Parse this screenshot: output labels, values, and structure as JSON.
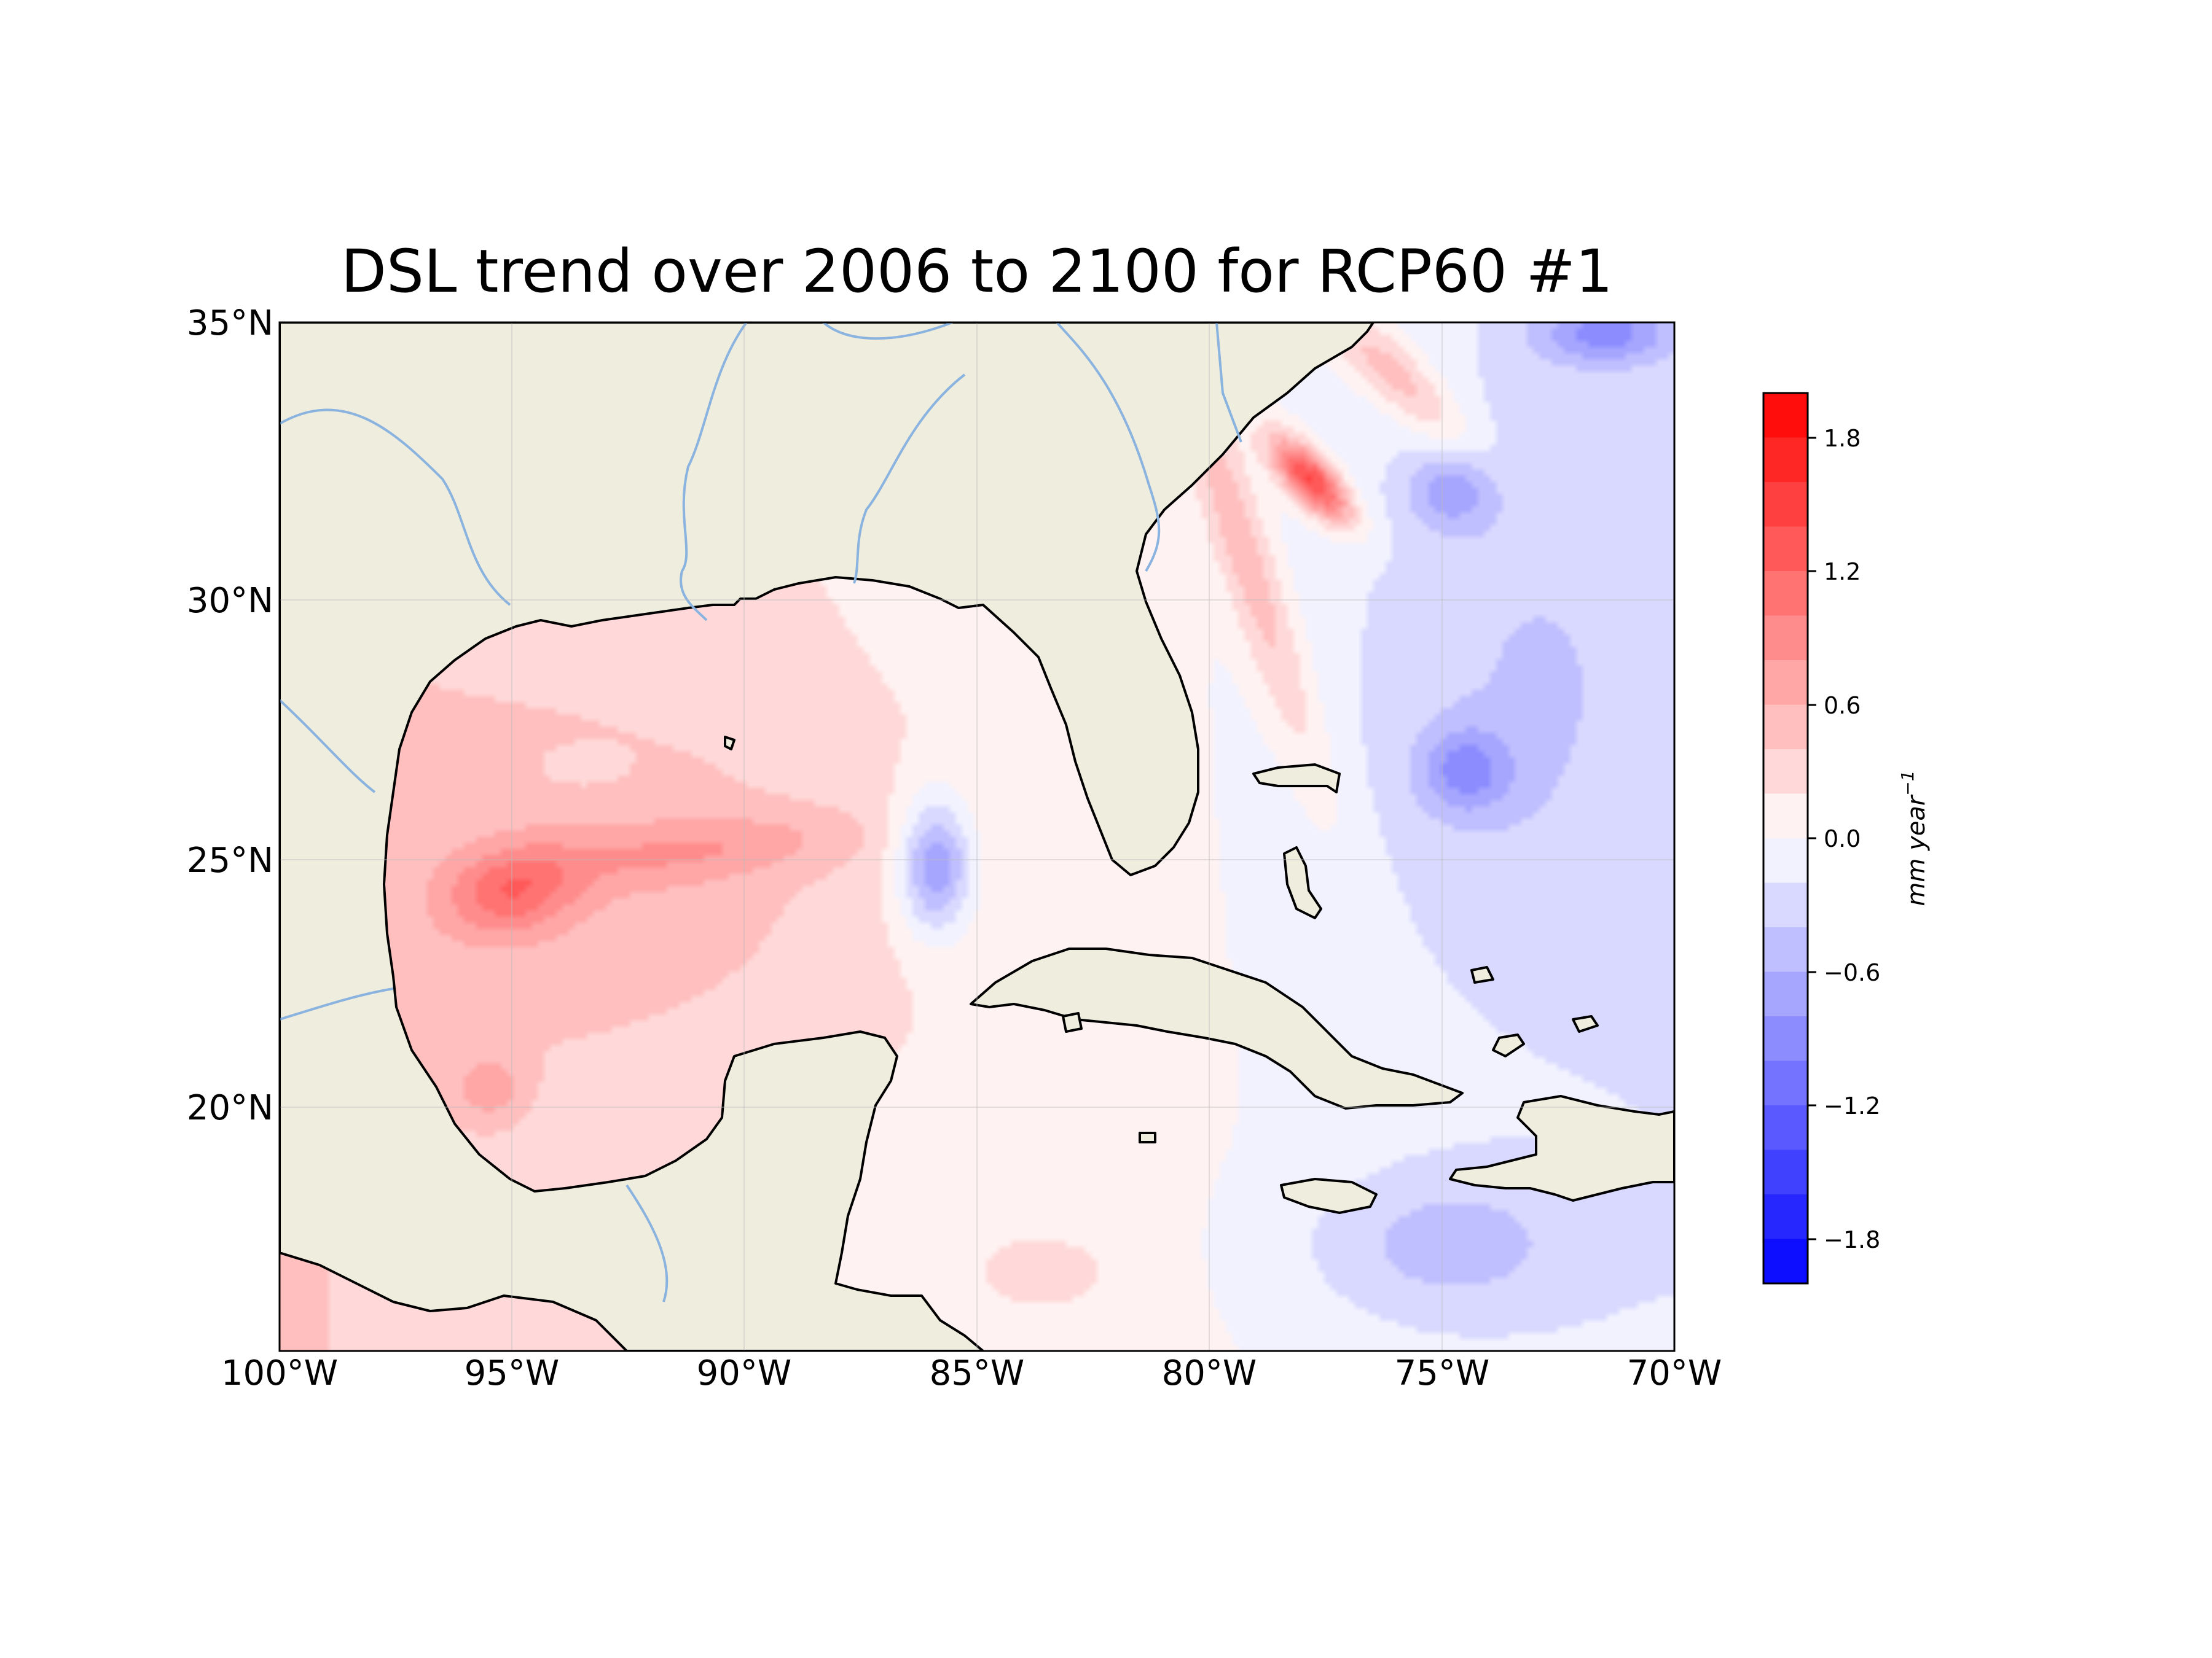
{
  "title": "DSL trend over 2006 to 2100 for RCP60 #1",
  "map": {
    "lon_range": [
      -100,
      -70
    ],
    "lat_range": [
      15.5,
      35
    ],
    "x_ticks": [
      "100°W",
      "95°W",
      "90°W",
      "85°W",
      "80°W",
      "75°W",
      "70°W"
    ],
    "x_tick_values": [
      -100,
      -95,
      -90,
      -85,
      -80,
      -75,
      -70
    ],
    "y_ticks": [
      "35°N",
      "30°N",
      "25°N",
      "20°N"
    ],
    "y_tick_values": [
      35,
      30,
      25,
      20
    ],
    "features": [
      "coastline-icon",
      "river-icon",
      "land-icon",
      "gridlines"
    ],
    "colors": {
      "land": "#efedde",
      "river": "#8ab3df",
      "coast": "#000000"
    }
  },
  "colorbar": {
    "label_base": "mm year",
    "label_exp": "−1",
    "ticks": [
      "1.8",
      "1.2",
      "0.6",
      "0.0",
      "−0.6",
      "−1.2",
      "−1.8"
    ],
    "tick_values": [
      1.8,
      1.2,
      0.6,
      0.0,
      -0.6,
      -1.2,
      -1.8
    ],
    "vmin": -2.0,
    "vmax": 2.0,
    "levels": 20,
    "cmap": "bwr"
  },
  "chart_data": {
    "type": "heatmap",
    "title": "DSL trend over 2006 to 2100 for RCP60 #1",
    "variable": "DSL trend",
    "units": "mm year^-1",
    "xlim": [
      -100,
      -70
    ],
    "ylim": [
      15.5,
      35
    ],
    "clim": [
      -2.0,
      2.0
    ],
    "features": [
      {
        "name": "gulf-stream-max",
        "lon": -77.8,
        "lat": 32.0,
        "value": 1.5,
        "rx": 1.1,
        "ry": 0.45,
        "angle": -42
      },
      {
        "name": "gulf-stream-band",
        "lon": -79.2,
        "lat": 30.5,
        "value": 0.55,
        "rx": 0.6,
        "ry": 4.5,
        "angle": 20
      },
      {
        "name": "gulf-stream-band-n",
        "lon": -76.0,
        "lat": 34.0,
        "value": 0.6,
        "rx": 2.0,
        "ry": 0.6,
        "angle": -40
      },
      {
        "name": "gulf-west-max",
        "lon": -95.0,
        "lat": 24.2,
        "value": 0.65,
        "rx": 1.4,
        "ry": 0.8,
        "angle": 10
      },
      {
        "name": "gulf-mid-band",
        "lon": -91.0,
        "lat": 25.0,
        "value": 0.35,
        "rx": 3.5,
        "ry": 0.6,
        "angle": 5
      },
      {
        "name": "gulf-interior",
        "lon": -92.0,
        "lat": 24.5,
        "value": 0.25,
        "rx": 6.0,
        "ry": 3.5,
        "angle": 0
      },
      {
        "name": "gulf-low",
        "lon": -93.5,
        "lat": 26.5,
        "value": -0.1,
        "rx": 1.2,
        "ry": 0.5,
        "angle": 0
      },
      {
        "name": "loop-current-eddy",
        "lon": -85.9,
        "lat": 24.7,
        "value": -0.95,
        "rx": 0.8,
        "ry": 1.3,
        "angle": 0
      },
      {
        "name": "sw-gulf",
        "lon": -95.5,
        "lat": 20.5,
        "value": 0.4,
        "rx": 0.7,
        "ry": 0.6,
        "angle": 0
      },
      {
        "name": "atlantic-low-1",
        "lon": -74.8,
        "lat": 31.8,
        "value": -0.5,
        "rx": 0.9,
        "ry": 0.7,
        "angle": 0
      },
      {
        "name": "atlantic-low-2",
        "lon": -74.5,
        "lat": 26.5,
        "value": -0.6,
        "rx": 1.0,
        "ry": 0.8,
        "angle": 0
      },
      {
        "name": "atlantic-low-3",
        "lon": -71.5,
        "lat": 34.8,
        "value": -0.7,
        "rx": 1.5,
        "ry": 0.6,
        "angle": 0
      },
      {
        "name": "atlantic-wide",
        "lon": -73.5,
        "lat": 28.0,
        "value": -0.3,
        "rx": 4.0,
        "ry": 6.0,
        "angle": 0
      },
      {
        "name": "caribbean-low",
        "lon": -75.0,
        "lat": 17.5,
        "value": -0.4,
        "rx": 3.0,
        "ry": 1.5,
        "angle": 0
      },
      {
        "name": "caribbean-sw-high",
        "lon": -83.5,
        "lat": 17.0,
        "value": 0.3,
        "rx": 1.2,
        "ry": 0.6,
        "angle": 0
      }
    ]
  }
}
